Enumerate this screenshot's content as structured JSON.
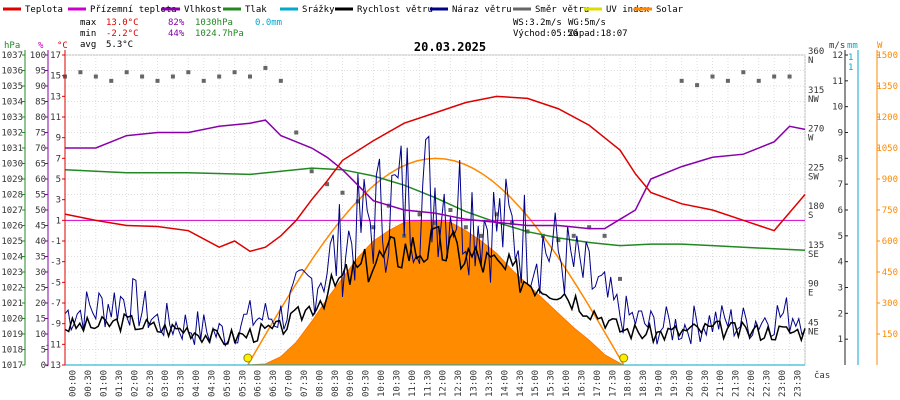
{
  "chart_data": {
    "type": "line",
    "title": "20.03.2025",
    "xlabel": "čas",
    "legend": [
      {
        "name": "Teplota",
        "color": "#dd0000"
      },
      {
        "name": "Přízemní teplota",
        "color": "#cc00cc"
      },
      {
        "name": "Vlhkost",
        "color": "#8800aa"
      },
      {
        "name": "Tlak",
        "color": "#228822"
      },
      {
        "name": "Srážky",
        "color": "#00aacc"
      },
      {
        "name": "Rychlost větru",
        "color": "#000000"
      },
      {
        "name": "Náraz větru",
        "color": "#000088"
      },
      {
        "name": "Směr větru",
        "color": "#666666"
      },
      {
        "name": "UV index",
        "color": "#dddd00"
      },
      {
        "name": "Solar",
        "color": "#ff8800"
      }
    ],
    "stats": {
      "max_label": "max",
      "min_label": "min",
      "avg_label": "avg",
      "max_temp": "13.0°C",
      "max_hum": "82%",
      "max_press": "1030hPa",
      "max_rain": "0.0mm",
      "min_temp": "-2.2°C",
      "min_hum": "44%",
      "min_press": "1024.7hPa",
      "avg_temp": "5.3°C"
    },
    "wind_info": {
      "ws": "WS:3.2m/s",
      "wg": "WG:5m/s",
      "sunrise": "Východ:05:56",
      "sunset": "Západ:18:07"
    },
    "axes": {
      "hpa": {
        "unit": "hPa",
        "ticks": [
          "1037",
          "1036",
          "1035",
          "1034",
          "1033",
          "1032",
          "1031",
          "1030",
          "1029",
          "1028",
          "1027",
          "1026",
          "1025",
          "1024",
          "1023",
          "1022",
          "1021",
          "1020",
          "1019",
          "1018",
          "1017"
        ]
      },
      "pct": {
        "unit": "%",
        "ticks": [
          "100",
          "95",
          "90",
          "85",
          "80",
          "75",
          "70",
          "65",
          "60",
          "55",
          "50",
          "45",
          "40",
          "35",
          "30",
          "25",
          "20",
          "15",
          "10",
          "5",
          "0"
        ]
      },
      "temp": {
        "unit": "°C",
        "ticks": [
          "17",
          "15",
          "13",
          "11",
          "9",
          "7",
          "5",
          "3",
          "1",
          "-1",
          "-3",
          "-5",
          "-7",
          "-9",
          "-11",
          "-13"
        ]
      },
      "dir": {
        "ticks": [
          [
            "360",
            "N"
          ],
          [
            "315",
            "NW"
          ],
          [
            "270",
            "W"
          ],
          [
            "225",
            "SW"
          ],
          [
            "180",
            "S"
          ],
          [
            "135",
            "SE"
          ],
          [
            "90",
            "E"
          ],
          [
            "45",
            "NE"
          ]
        ]
      },
      "ms": {
        "unit": "m/s",
        "ticks": [
          "12",
          "11",
          "10",
          "9",
          "8",
          "7",
          "6",
          "5",
          "4",
          "3",
          "2",
          "1"
        ]
      },
      "mm": {
        "unit": "mm",
        "ticks": [
          "1",
          "1"
        ]
      },
      "w": {
        "unit": "W",
        "ticks": [
          "1500",
          "1350",
          "1200",
          "1050",
          "900",
          "750",
          "600",
          "450",
          "300",
          "150"
        ]
      }
    },
    "x_ticks": [
      "00:00",
      "00:30",
      "01:00",
      "01:30",
      "02:00",
      "02:30",
      "03:00",
      "03:30",
      "04:00",
      "04:30",
      "05:00",
      "05:30",
      "06:00",
      "06:30",
      "07:00",
      "07:30",
      "08:00",
      "08:30",
      "09:00",
      "09:30",
      "10:00",
      "10:30",
      "11:00",
      "11:30",
      "12:00",
      "12:30",
      "13:00",
      "13:30",
      "14:00",
      "14:30",
      "15:00",
      "15:30",
      "16:00",
      "16:30",
      "17:00",
      "17:30",
      "18:00",
      "18:30",
      "19:00",
      "19:30",
      "20:00",
      "20:30",
      "21:00",
      "21:30",
      "22:00",
      "22:30",
      "23:00",
      "23:30"
    ],
    "series": [
      {
        "name": "Teplota",
        "unit": "°C",
        "x": [
          0,
          1,
          2,
          3,
          4,
          5,
          5.5,
          6,
          6.5,
          7,
          7.5,
          8,
          8.5,
          9,
          10,
          11,
          12,
          13,
          14,
          15,
          16,
          17,
          17.5,
          18,
          18.5,
          19,
          20,
          21,
          22,
          23,
          24
        ],
        "values": [
          1.6,
          1.0,
          0.5,
          0.4,
          0.0,
          -1.6,
          -1.0,
          -2.0,
          -1.6,
          -0.5,
          1.0,
          3.0,
          4.8,
          6.8,
          8.7,
          10.4,
          11.4,
          12.4,
          13.0,
          12.8,
          11.8,
          10.2,
          9.0,
          7.8,
          5.5,
          3.7,
          2.6,
          2.0,
          1.0,
          0.0,
          3.5
        ]
      },
      {
        "name": "Přízemní teplota",
        "unit": "°C",
        "x": [
          0,
          24
        ],
        "values": [
          1.0,
          1.0
        ]
      },
      {
        "name": "Vlhkost",
        "unit": "%",
        "x": [
          0,
          1,
          2,
          3,
          4,
          5,
          6,
          6.5,
          7,
          7.5,
          8,
          8.5,
          9,
          9.5,
          10,
          11,
          12,
          13,
          14,
          15,
          16,
          17,
          17.5,
          18,
          18.5,
          19,
          20,
          21,
          22,
          23,
          23.5,
          24
        ],
        "values": [
          70,
          70,
          74,
          75,
          75,
          77,
          78,
          79,
          74,
          72,
          70,
          67,
          63,
          58,
          53,
          50,
          49,
          47,
          46,
          45,
          45,
          44,
          44,
          47,
          50,
          60,
          64,
          67,
          68,
          72,
          77,
          76
        ]
      },
      {
        "name": "Tlak",
        "unit": "hPa",
        "x": [
          0,
          2,
          4,
          6,
          8,
          9,
          10,
          11,
          12,
          13,
          14,
          15,
          16,
          17,
          18,
          19,
          20,
          21,
          22,
          23,
          24
        ],
        "values": [
          1029.6,
          1029.4,
          1029.4,
          1029.3,
          1029.7,
          1029.6,
          1029.2,
          1028.6,
          1027.8,
          1026.9,
          1026.2,
          1025.6,
          1025.2,
          1024.9,
          1024.7,
          1024.8,
          1024.8,
          1024.7,
          1024.6,
          1024.5,
          1024.4
        ]
      },
      {
        "name": "Srážky",
        "unit": "mm",
        "x": [
          0,
          24
        ],
        "values": [
          0,
          0
        ]
      },
      {
        "name": "Rychlost větru",
        "unit": "m/s",
        "x": [
          0,
          1,
          2,
          3,
          4,
          5,
          6,
          7,
          8,
          9,
          10,
          11,
          12,
          13,
          14,
          15,
          16,
          17,
          18,
          19,
          20,
          21,
          22,
          23,
          24
        ],
        "values": [
          1.5,
          1.5,
          1.7,
          1.4,
          1.4,
          1.0,
          1.2,
          1.4,
          2.3,
          3.3,
          4.0,
          4.5,
          4.6,
          4.3,
          3.8,
          3.3,
          3.0,
          2.2,
          1.4,
          1.2,
          1.3,
          1.4,
          1.3,
          1.3,
          1.3
        ]
      },
      {
        "name": "Náraz větru",
        "unit": "m/s",
        "x": [
          0,
          1,
          2,
          3,
          4,
          5,
          6,
          7,
          8,
          9,
          10,
          11,
          12,
          13,
          14,
          15,
          16,
          17,
          18,
          19,
          20,
          21,
          22,
          23,
          24
        ],
        "values": [
          2.0,
          2.2,
          2.6,
          1.7,
          1.5,
          1.2,
          1.8,
          1.9,
          3.2,
          4.6,
          5.8,
          6.5,
          6.9,
          6.2,
          5.4,
          4.9,
          4.3,
          3.3,
          2.0,
          1.5,
          1.5,
          1.7,
          1.6,
          1.9,
          2.0
        ]
      },
      {
        "name": "Směr větru",
        "unit": "°",
        "x": [
          0,
          0.5,
          1,
          1.5,
          2,
          2.5,
          3,
          3.5,
          4,
          4.5,
          5,
          5.5,
          6,
          6.5,
          7,
          7.5,
          8,
          8.5,
          9,
          9.5,
          10,
          10.5,
          11,
          11.5,
          12,
          12.5,
          13,
          13.5,
          14,
          14.5,
          15,
          15.5,
          16,
          16.5,
          17,
          17.5,
          18,
          20,
          20.5,
          21,
          21.5,
          22,
          22.5,
          23,
          23.5
        ],
        "values": [
          335,
          340,
          335,
          330,
          340,
          335,
          330,
          335,
          340,
          330,
          335,
          340,
          335,
          345,
          330,
          270,
          225,
          210,
          200,
          190,
          160,
          185,
          150,
          175,
          165,
          180,
          160,
          150,
          175,
          165,
          155,
          150,
          145,
          150,
          160,
          150,
          100,
          330,
          325,
          335,
          330,
          340,
          330,
          335,
          335
        ]
      },
      {
        "name": "UV index",
        "unit": "",
        "x": [
          0,
          24
        ],
        "values": [
          0,
          0
        ]
      },
      {
        "name": "Solar",
        "unit": "W/m²",
        "x": [
          5.9,
          6.5,
          7,
          7.5,
          8,
          8.5,
          9,
          9.5,
          10,
          10.5,
          11,
          11.5,
          12,
          12.5,
          13,
          13.5,
          14,
          14.5,
          15,
          15.5,
          16,
          16.5,
          17,
          17.5,
          18.1
        ],
        "values": [
          0,
          5,
          40,
          110,
          210,
          320,
          420,
          520,
          600,
          650,
          690,
          700,
          700,
          690,
          650,
          600,
          540,
          460,
          390,
          320,
          250,
          180,
          120,
          50,
          0
        ]
      }
    ]
  }
}
